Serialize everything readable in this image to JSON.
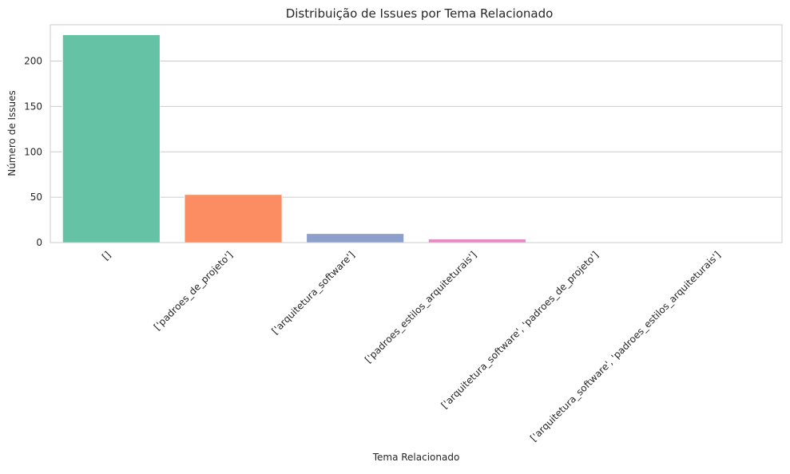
{
  "chart_data": {
    "type": "bar",
    "title": "Distribuição de Issues por Tema Relacionado",
    "xlabel": "Tema Relacionado",
    "ylabel": "Número de Issues",
    "categories": [
      "[]",
      "['padroes_de_projeto']",
      "['arquitetura_software']",
      "['padroes_estilos_arquiteturais']",
      "['arquitetura_software', 'padroes_de_projeto']",
      "['arquitetura_software', 'padroes_estilos_arquiteturais']"
    ],
    "values": [
      229,
      53,
      10,
      4,
      0,
      0
    ],
    "colors": [
      "#66c2a5",
      "#fc8d62",
      "#8da0cb",
      "#e78ac3",
      "#a6d854",
      "#ffd92f"
    ],
    "ylim": [
      0,
      240
    ],
    "yticks": [
      0,
      50,
      100,
      150,
      200
    ],
    "grid": true,
    "legend": "none"
  }
}
